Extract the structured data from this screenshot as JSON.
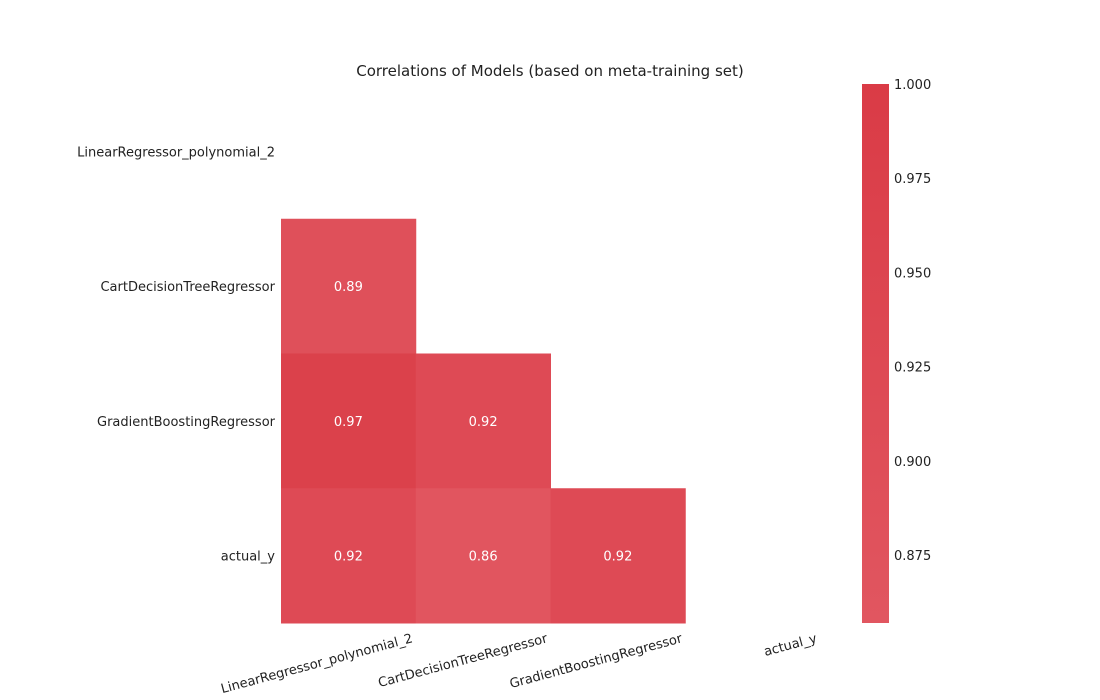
{
  "chart_data": {
    "type": "heatmap",
    "title": "Correlations of Models (based on meta-training set)",
    "rows": [
      "LinearRegressor_polynomial_2",
      "CartDecisionTreeRegressor",
      "GradientBoostingRegressor",
      "actual_y"
    ],
    "columns": [
      "LinearRegressor_polynomial_2",
      "CartDecisionTreeRegressor",
      "GradientBoostingRegressor",
      "actual_y"
    ],
    "mask": "upper-triangle-including-diagonal",
    "cells": [
      {
        "row": 1,
        "col": 0,
        "value": 0.89,
        "label": "0.89"
      },
      {
        "row": 2,
        "col": 0,
        "value": 0.97,
        "label": "0.97"
      },
      {
        "row": 2,
        "col": 1,
        "value": 0.92,
        "label": "0.92"
      },
      {
        "row": 3,
        "col": 0,
        "value": 0.92,
        "label": "0.92"
      },
      {
        "row": 3,
        "col": 1,
        "value": 0.86,
        "label": "0.86"
      },
      {
        "row": 3,
        "col": 2,
        "value": 0.92,
        "label": "0.92"
      }
    ],
    "colorbar": {
      "range": [
        0.857,
        1.0
      ],
      "ticks": [
        {
          "value": 1.0,
          "label": "1.000"
        },
        {
          "value": 0.975,
          "label": "0.975"
        },
        {
          "value": 0.95,
          "label": "0.950"
        },
        {
          "value": 0.925,
          "label": "0.925"
        },
        {
          "value": 0.9,
          "label": "0.900"
        },
        {
          "value": 0.875,
          "label": "0.875"
        }
      ],
      "color_low": "#e15660",
      "color_high": "#da3b46"
    },
    "xtick_rotation_deg": -15,
    "grid": false,
    "legend": "colorbar-right"
  }
}
